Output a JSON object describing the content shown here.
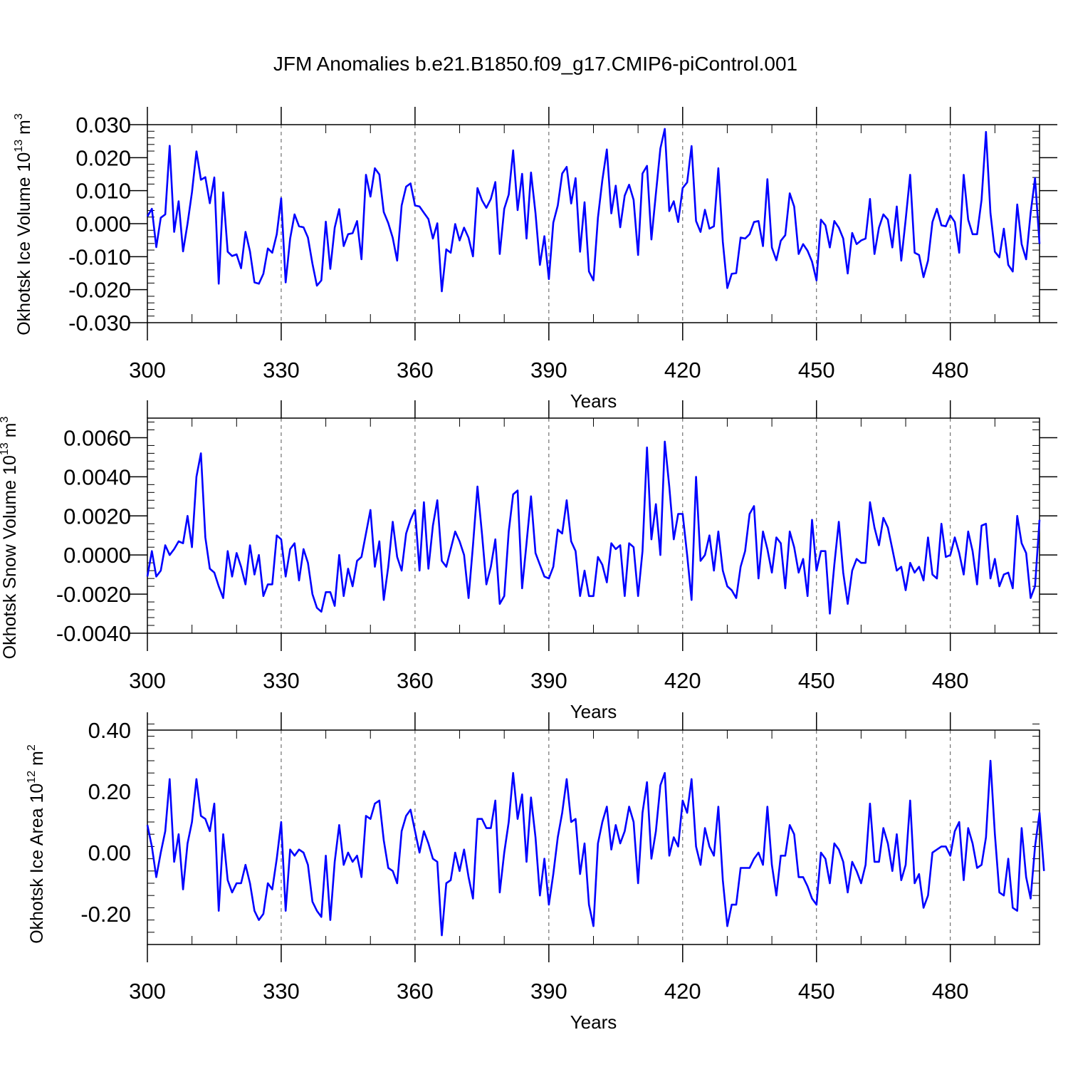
{
  "title": "JFM Anomalies b.e21.B1850.f09_g17.CMIP6-piControl.001",
  "colors": {
    "line": "#0000ff",
    "axis": "#000000",
    "grid": "#555555"
  },
  "chart_data": [
    {
      "type": "line",
      "name": "ice-volume",
      "ylabel": "Okhotsk Ice Volume",
      "ylabel_unit": {
        "base": "10",
        "exp": "13",
        "unit": "m",
        "unit_exp": "3"
      },
      "xlabel": "Years",
      "x_start": 300,
      "x_step": 1,
      "xlim": [
        300,
        500
      ],
      "ylim": [
        -0.03,
        0.03
      ],
      "xticks": [
        300,
        330,
        360,
        390,
        420,
        450,
        480
      ],
      "xtick_labels": [
        "300",
        "330",
        "360",
        "390",
        "420",
        "450",
        "480"
      ],
      "yticks": [
        -0.03,
        -0.02,
        -0.01,
        0.0,
        0.01,
        0.02,
        0.03
      ],
      "ytick_labels": [
        "-0.030",
        "-0.020",
        "-0.010",
        "0.000",
        "0.010",
        "0.020",
        "0.030"
      ],
      "grid": "vertical dashed at x ticks",
      "values": [
        0.0022,
        0.0045,
        -0.0071,
        0.0018,
        0.0028,
        0.0236,
        -0.0025,
        0.0068,
        -0.0084,
        0.0,
        0.0095,
        0.0219,
        0.0133,
        0.0141,
        0.0062,
        0.014,
        -0.0182,
        0.0095,
        -0.0085,
        -0.0098,
        -0.0093,
        -0.0135,
        -0.0025,
        -0.0084,
        -0.0178,
        -0.0182,
        -0.0152,
        -0.0075,
        -0.0088,
        -0.0032,
        0.0077,
        -0.0178,
        -0.0045,
        0.0028,
        -0.0008,
        -0.0011,
        -0.0042,
        -0.0121,
        -0.0188,
        -0.0172,
        0.0006,
        -0.0137,
        -0.0012,
        0.0044,
        -0.0068,
        -0.0032,
        -0.0029,
        0.0008,
        -0.0108,
        0.0148,
        0.0082,
        0.0168,
        0.0149,
        0.0035,
        0.0002,
        -0.0043,
        -0.0112,
        0.0055,
        0.0112,
        0.0122,
        0.0055,
        0.0052,
        0.0033,
        0.0014,
        -0.0045,
        0.0001,
        -0.0205,
        -0.0078,
        -0.0088,
        -0.0001,
        -0.0051,
        -0.0012,
        -0.0043,
        -0.0099,
        0.0108,
        0.0071,
        0.0048,
        0.0075,
        0.0126,
        -0.0092,
        0.0045,
        0.0088,
        0.0222,
        0.0041,
        0.0151,
        -0.0045,
        0.0155,
        0.0032,
        -0.0125,
        -0.0038,
        -0.0168,
        0.0003,
        0.0055,
        0.0152,
        0.0172,
        0.0061,
        0.0138,
        -0.0085,
        0.0065,
        -0.0145,
        -0.0172,
        0.0018,
        0.0132,
        0.0225,
        0.0031,
        0.0115,
        -0.0011,
        0.0085,
        0.0118,
        0.0072,
        -0.0095,
        0.0152,
        0.0175,
        -0.0048,
        0.0091,
        0.0228,
        0.0287,
        0.0038,
        0.0068,
        0.0005,
        0.0108,
        0.0125,
        0.0235,
        0.0008,
        -0.0025,
        0.0042,
        -0.0015,
        -0.0008,
        0.0168,
        -0.0055,
        -0.0195,
        -0.0152,
        -0.015,
        -0.0042,
        -0.0045,
        -0.0032,
        0.0005,
        0.0008,
        -0.0068,
        0.0135,
        -0.0072,
        -0.0111,
        -0.0052,
        -0.0035,
        0.0092,
        0.0052,
        -0.0092,
        -0.0062,
        -0.0082,
        -0.0115,
        -0.0172,
        0.0012,
        -0.0005,
        -0.0072,
        0.0008,
        -0.0012,
        -0.0045,
        -0.0151,
        -0.0028,
        -0.0062,
        -0.0051,
        -0.0045,
        0.0075,
        -0.0092,
        -0.0012,
        0.0028,
        0.0012,
        -0.0072,
        0.0052,
        -0.0112,
        0.0012,
        0.0148,
        -0.0088,
        -0.0095,
        -0.0162,
        -0.0112,
        0.0005,
        0.0045,
        -0.0005,
        -0.0008,
        0.0025,
        0.0005,
        -0.0088,
        0.0148,
        0.0012,
        -0.0032,
        -0.0032,
        0.0072,
        0.0278,
        0.0032,
        -0.0085,
        -0.0102,
        -0.0015,
        -0.0125,
        -0.0145,
        0.0058,
        -0.0062,
        -0.0108,
        0.0032,
        0.0138,
        -0.0061
      ]
    },
    {
      "type": "line",
      "name": "snow-volume",
      "ylabel": "Okhotsk Snow Volume",
      "ylabel_unit": {
        "base": "10",
        "exp": "13",
        "unit": "m",
        "unit_exp": "3"
      },
      "xlabel": "Years",
      "x_start": 300,
      "x_step": 1,
      "xlim": [
        300,
        500
      ],
      "ylim": [
        -0.004,
        0.007
      ],
      "xticks": [
        300,
        330,
        360,
        390,
        420,
        450,
        480
      ],
      "xtick_labels": [
        "300",
        "330",
        "360",
        "390",
        "420",
        "450",
        "480"
      ],
      "yticks": [
        -0.004,
        -0.002,
        0.0,
        0.002,
        0.004,
        0.006
      ],
      "ytick_labels": [
        "-0.0040",
        "-0.0020",
        "0.0000",
        "0.0020",
        "0.0040",
        "0.0060"
      ],
      "grid": "vertical dashed at x ticks",
      "values": [
        -0.0011,
        0.0002,
        -0.0011,
        -0.0008,
        0.0005,
        0.0,
        0.0003,
        0.0007,
        0.0006,
        0.002,
        0.0004,
        0.004,
        0.0052,
        0.0009,
        -0.0007,
        -0.0009,
        -0.0016,
        -0.0022,
        0.0002,
        -0.0011,
        0.0001,
        -0.0006,
        -0.0015,
        0.0005,
        -0.001,
        0.0,
        -0.0021,
        -0.0015,
        -0.0015,
        0.001,
        0.0008,
        -0.0011,
        0.0003,
        0.0006,
        -0.0013,
        0.0003,
        -0.0004,
        -0.002,
        -0.0027,
        -0.0029,
        -0.0019,
        -0.0019,
        -0.0026,
        0.0,
        -0.0021,
        -0.0007,
        -0.0016,
        -0.0003,
        -0.0001,
        0.0011,
        0.0023,
        -0.0006,
        0.0007,
        -0.0023,
        -0.0006,
        0.0017,
        -0.0001,
        -0.0008,
        0.0011,
        0.0018,
        0.0023,
        -0.0008,
        0.0027,
        -0.0007,
        0.0015,
        0.0028,
        -0.0003,
        -0.0006,
        0.0003,
        0.0012,
        0.0007,
        0.0,
        -0.0022,
        0.0005,
        0.0035,
        0.0011,
        -0.0015,
        -0.0006,
        0.0008,
        -0.0025,
        -0.0021,
        0.0012,
        0.0031,
        0.0033,
        -0.0017,
        0.0006,
        0.003,
        0.0001,
        -0.0005,
        -0.0011,
        -0.0012,
        -0.0006,
        0.0013,
        0.0011,
        0.0028,
        0.0007,
        0.0002,
        -0.0021,
        -0.0008,
        -0.0021,
        -0.0021,
        -0.0001,
        -0.0005,
        -0.0014,
        0.0006,
        0.0003,
        0.0005,
        -0.0021,
        0.0006,
        0.0004,
        -0.0021,
        0.0002,
        0.0055,
        0.0008,
        0.0026,
        0.0,
        0.0058,
        0.0035,
        0.0008,
        0.0021,
        0.0021,
        0.0,
        -0.0023,
        0.004,
        -0.0003,
        0.0,
        0.001,
        -0.0008,
        0.0012,
        -0.0008,
        -0.0016,
        -0.0018,
        -0.0022,
        -0.0006,
        0.0002,
        0.0021,
        0.0025,
        -0.0012,
        0.0012,
        0.0003,
        -0.0009,
        0.0009,
        0.0006,
        -0.0017,
        0.0012,
        0.0004,
        -0.0009,
        -0.0002,
        -0.0021,
        0.0018,
        -0.0008,
        0.0002,
        0.0002,
        -0.003,
        -0.0005,
        0.0017,
        -0.0009,
        -0.0025,
        -0.0008,
        -0.0002,
        -0.0004,
        -0.0004,
        0.0027,
        0.0014,
        0.0005,
        0.0019,
        0.0014,
        0.0003,
        -0.0008,
        -0.0006,
        -0.0018,
        -0.0004,
        -0.0009,
        -0.0006,
        -0.0013,
        0.0009,
        -0.001,
        -0.0012,
        0.0016,
        -0.0001,
        0.0,
        0.0009,
        0.0001,
        -0.001,
        0.0012,
        0.0002,
        -0.0015,
        0.0015,
        0.0016,
        -0.0012,
        -0.0002,
        -0.0016,
        -0.001,
        -0.0009,
        -0.0017,
        0.002,
        0.0006,
        0.0001,
        -0.0022,
        -0.0016,
        0.0018
      ]
    },
    {
      "type": "line",
      "name": "ice-area",
      "ylabel": "Okhotsk Ice Area",
      "ylabel_unit": {
        "base": "10",
        "exp": "12",
        "unit": "m",
        "unit_exp": "2"
      },
      "xlabel": "Years",
      "x_start": 300,
      "x_step": 1,
      "xlim": [
        300,
        500
      ],
      "ylim": [
        -0.3,
        0.4
      ],
      "xticks": [
        300,
        330,
        360,
        390,
        420,
        450,
        480
      ],
      "xtick_labels": [
        "300",
        "330",
        "360",
        "390",
        "420",
        "450",
        "480"
      ],
      "yticks": [
        -0.2,
        0.0,
        0.2,
        0.4
      ],
      "ytick_labels": [
        "-0.20",
        "0.00",
        "0.20",
        "0.40"
      ],
      "grid": "vertical dashed at x ticks",
      "values": [
        0.09,
        0.02,
        -0.08,
        0.0,
        0.07,
        0.24,
        -0.03,
        0.06,
        -0.12,
        0.03,
        0.1,
        0.24,
        0.12,
        0.11,
        0.07,
        0.16,
        -0.19,
        0.06,
        -0.09,
        -0.13,
        -0.1,
        -0.1,
        -0.04,
        -0.1,
        -0.19,
        -0.22,
        -0.2,
        -0.1,
        -0.12,
        -0.02,
        0.1,
        -0.19,
        0.01,
        -0.01,
        0.01,
        0.0,
        -0.04,
        -0.16,
        -0.19,
        -0.21,
        -0.01,
        -0.22,
        -0.03,
        0.09,
        -0.04,
        0.0,
        -0.03,
        -0.01,
        -0.08,
        0.12,
        0.11,
        0.16,
        0.17,
        0.04,
        -0.05,
        -0.06,
        -0.1,
        0.07,
        0.12,
        0.14,
        0.07,
        0.0,
        0.07,
        0.03,
        -0.02,
        -0.03,
        -0.27,
        -0.1,
        -0.09,
        0.0,
        -0.06,
        0.01,
        -0.08,
        -0.15,
        0.11,
        0.11,
        0.08,
        0.08,
        0.17,
        -0.13,
        0.0,
        0.1,
        0.26,
        0.11,
        0.19,
        -0.03,
        0.18,
        0.05,
        -0.14,
        -0.02,
        -0.17,
        -0.07,
        0.05,
        0.13,
        0.24,
        0.1,
        0.11,
        -0.07,
        0.03,
        -0.17,
        -0.24,
        0.03,
        0.1,
        0.15,
        0.01,
        0.09,
        0.03,
        0.07,
        0.15,
        0.1,
        -0.1,
        0.13,
        0.23,
        -0.02,
        0.07,
        0.22,
        0.26,
        -0.01,
        0.05,
        0.02,
        0.17,
        0.13,
        0.24,
        0.02,
        -0.04,
        0.08,
        0.02,
        -0.01,
        0.15,
        -0.09,
        -0.24,
        -0.17,
        -0.17,
        -0.05,
        -0.05,
        -0.05,
        -0.02,
        0.0,
        -0.04,
        0.15,
        -0.04,
        -0.14,
        -0.01,
        -0.01,
        0.09,
        0.06,
        -0.08,
        -0.08,
        -0.11,
        -0.15,
        -0.17,
        0.0,
        -0.02,
        -0.1,
        0.03,
        0.01,
        -0.03,
        -0.13,
        -0.03,
        -0.06,
        -0.1,
        -0.04,
        0.16,
        -0.03,
        -0.03,
        0.08,
        0.03,
        -0.06,
        0.06,
        -0.09,
        -0.04,
        0.17,
        -0.1,
        -0.07,
        -0.18,
        -0.14,
        0.0,
        0.01,
        0.02,
        0.02,
        -0.01,
        0.07,
        0.1,
        -0.09,
        0.08,
        0.03,
        -0.05,
        -0.04,
        0.05,
        0.3,
        0.06,
        -0.13,
        -0.14,
        -0.02,
        -0.18,
        -0.19,
        0.08,
        -0.08,
        -0.15,
        0.02,
        0.13,
        -0.06
      ]
    }
  ]
}
